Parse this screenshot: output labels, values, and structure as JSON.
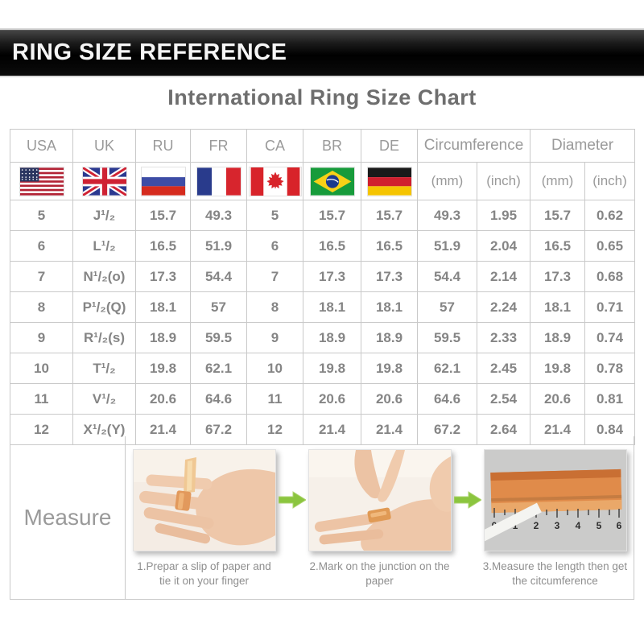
{
  "banner": {
    "title": "RING SIZE REFERENCE"
  },
  "page": {
    "title": "International Ring Size Chart"
  },
  "table": {
    "country_columns": [
      {
        "code": "USA",
        "flag": "usa-flag-icon"
      },
      {
        "code": "UK",
        "flag": "uk-flag-icon"
      },
      {
        "code": "RU",
        "flag": "ru-flag-icon"
      },
      {
        "code": "FR",
        "flag": "fr-flag-icon"
      },
      {
        "code": "CA",
        "flag": "ca-flag-icon"
      },
      {
        "code": "BR",
        "flag": "br-flag-icon"
      },
      {
        "code": "DE",
        "flag": "de-flag-icon"
      }
    ],
    "group_columns": [
      {
        "label": "Circumference",
        "sub": [
          "(mm)",
          "(inch)"
        ]
      },
      {
        "label": "Diameter",
        "sub": [
          "(mm)",
          "(inch)"
        ]
      }
    ],
    "column_keys": [
      "usa",
      "uk",
      "ru",
      "fr",
      "ca",
      "br",
      "de",
      "circ-mm",
      "circ-inch",
      "dia-mm",
      "dia-inch"
    ],
    "rows": [
      [
        "5",
        "J¹/₂",
        "15.7",
        "49.3",
        "5",
        "15.7",
        "15.7",
        "49.3",
        "1.95",
        "15.7",
        "0.62"
      ],
      [
        "6",
        "L¹/₂",
        "16.5",
        "51.9",
        "6",
        "16.5",
        "16.5",
        "51.9",
        "2.04",
        "16.5",
        "0.65"
      ],
      [
        "7",
        "N¹/₂(o)",
        "17.3",
        "54.4",
        "7",
        "17.3",
        "17.3",
        "54.4",
        "2.14",
        "17.3",
        "0.68"
      ],
      [
        "8",
        "P¹/₂(Q)",
        "18.1",
        "57",
        "8",
        "18.1",
        "18.1",
        "57",
        "2.24",
        "18.1",
        "0.71"
      ],
      [
        "9",
        "R¹/₂(s)",
        "18.9",
        "59.5",
        "9",
        "18.9",
        "18.9",
        "59.5",
        "2.33",
        "18.9",
        "0.74"
      ],
      [
        "10",
        "T¹/₂",
        "19.8",
        "62.1",
        "10",
        "19.8",
        "19.8",
        "62.1",
        "2.45",
        "19.8",
        "0.78"
      ],
      [
        "11",
        "V¹/₂",
        "20.6",
        "64.6",
        "11",
        "20.6",
        "20.6",
        "64.6",
        "2.54",
        "20.6",
        "0.81"
      ],
      [
        "12",
        "X¹/₂(Y)",
        "21.4",
        "67.2",
        "12",
        "21.4",
        "21.4",
        "67.2",
        "2.64",
        "21.4",
        "0.84"
      ]
    ]
  },
  "measure": {
    "label": "Measure",
    "steps": [
      {
        "caption": "1.Prepar a slip of paper and tie it on your finger"
      },
      {
        "caption": "2.Mark on the junction on the paper"
      },
      {
        "caption": "3.Measure the length then get the citcumference"
      }
    ],
    "ruler_ticks": [
      "0",
      "cm",
      "1",
      "2",
      "3",
      "4",
      "5",
      "6"
    ]
  },
  "colors": {
    "banner_bg": "#000000",
    "banner_text": "#f5f5f5",
    "title_text": "#6e6e6e",
    "table_border": "#c9c9c9",
    "table_text": "#858585",
    "arrow_green": "#8bc53f",
    "ruler_orange": "#e08b4a"
  }
}
